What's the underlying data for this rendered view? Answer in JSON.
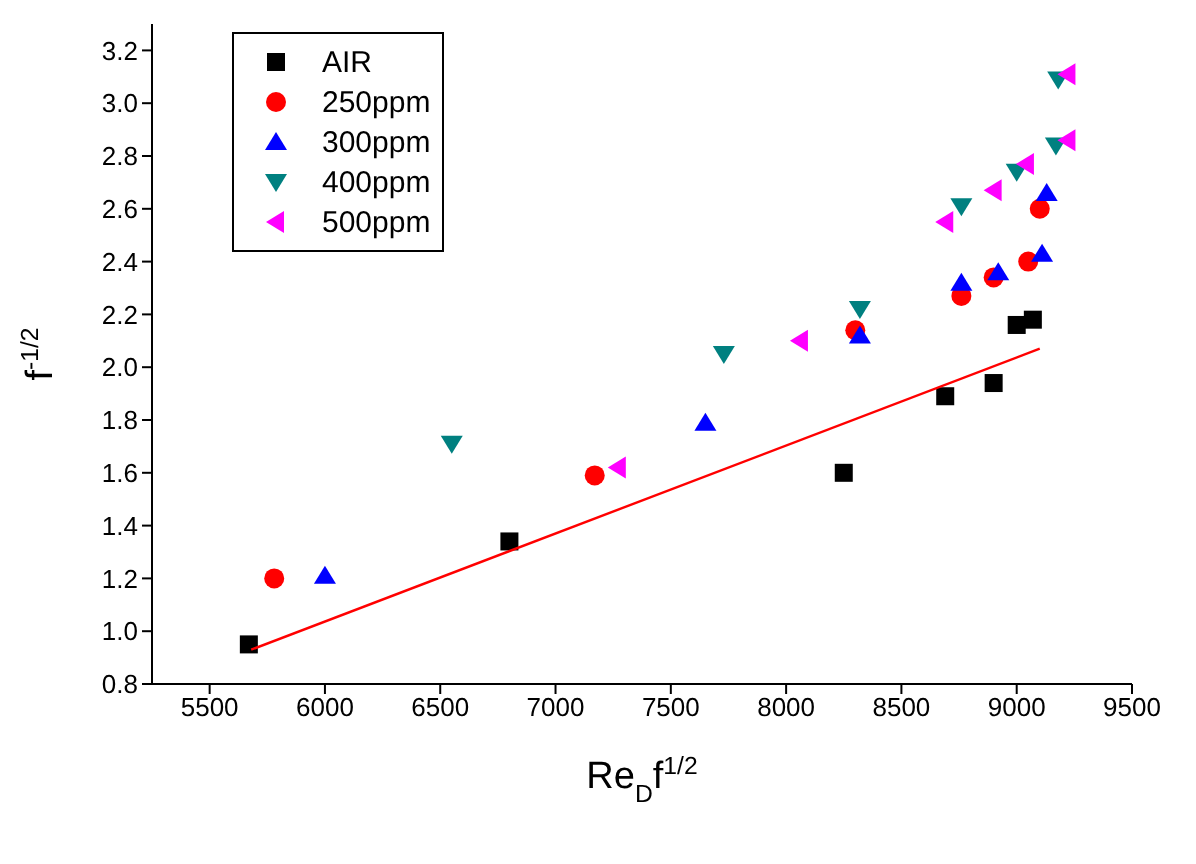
{
  "chart_data": {
    "type": "scatter",
    "xlabel": "Re$_{D}$f$^{1/2}$",
    "ylabel": "f$^{-1/2}$",
    "xlim": [
      5250,
      9500
    ],
    "xticks": [
      5500,
      6000,
      6500,
      7000,
      7500,
      8000,
      8500,
      9000,
      9500
    ],
    "ylim": [
      0.8,
      3.3
    ],
    "yticks": [
      0.8,
      {
        "value": 1,
        "label": "1.0"
      },
      1.2,
      1.4,
      1.6,
      1.8,
      {
        "value": 2,
        "label": "2.0"
      },
      2.2,
      2.4,
      2.6,
      2.8,
      {
        "value": 3,
        "label": "3.0"
      },
      3.2
    ],
    "grid": false,
    "legend": "top left",
    "series": [
      {
        "name": "AIR",
        "color": "#000000",
        "marker": "square",
        "x": [
          5670,
          6800,
          8250,
          8690,
          8900,
          9000,
          9070
        ],
        "values": [
          0.95,
          1.34,
          1.6,
          1.89,
          1.94,
          2.16,
          2.18
        ]
      },
      {
        "name": "250ppm",
        "color": "#ff0000",
        "marker": "circle",
        "x": [
          5780,
          7170,
          8300,
          8760,
          8900,
          9050,
          9100
        ],
        "values": [
          1.2,
          1.59,
          2.14,
          2.27,
          2.34,
          2.4,
          2.6
        ]
      },
      {
        "name": "300ppm",
        "color": "#0000ff",
        "marker": "triangle",
        "x": [
          6000,
          7650,
          8320,
          8760,
          8920,
          9110,
          9130
        ],
        "values": [
          1.21,
          1.79,
          2.12,
          2.32,
          2.36,
          2.43,
          2.66
        ]
      },
      {
        "name": "400ppm",
        "color": "#008080",
        "marker": "triangle-down",
        "x": [
          6550,
          7730,
          8320,
          8760,
          9000,
          9170,
          9180
        ],
        "values": [
          1.71,
          2.05,
          2.22,
          2.61,
          2.74,
          2.84,
          3.09
        ]
      },
      {
        "name": "500ppm",
        "color": "#ff00ff",
        "marker": "triangle-left",
        "x": [
          7270,
          8060,
          8690,
          8900,
          9040,
          9220,
          9220
        ],
        "values": [
          1.62,
          2.1,
          2.55,
          2.67,
          2.77,
          2.86,
          3.11
        ]
      },
      {
        "type": "line",
        "color": "#ff0000",
        "x": [
          5680,
          9100
        ],
        "values": [
          0.93,
          2.07
        ]
      }
    ]
  }
}
